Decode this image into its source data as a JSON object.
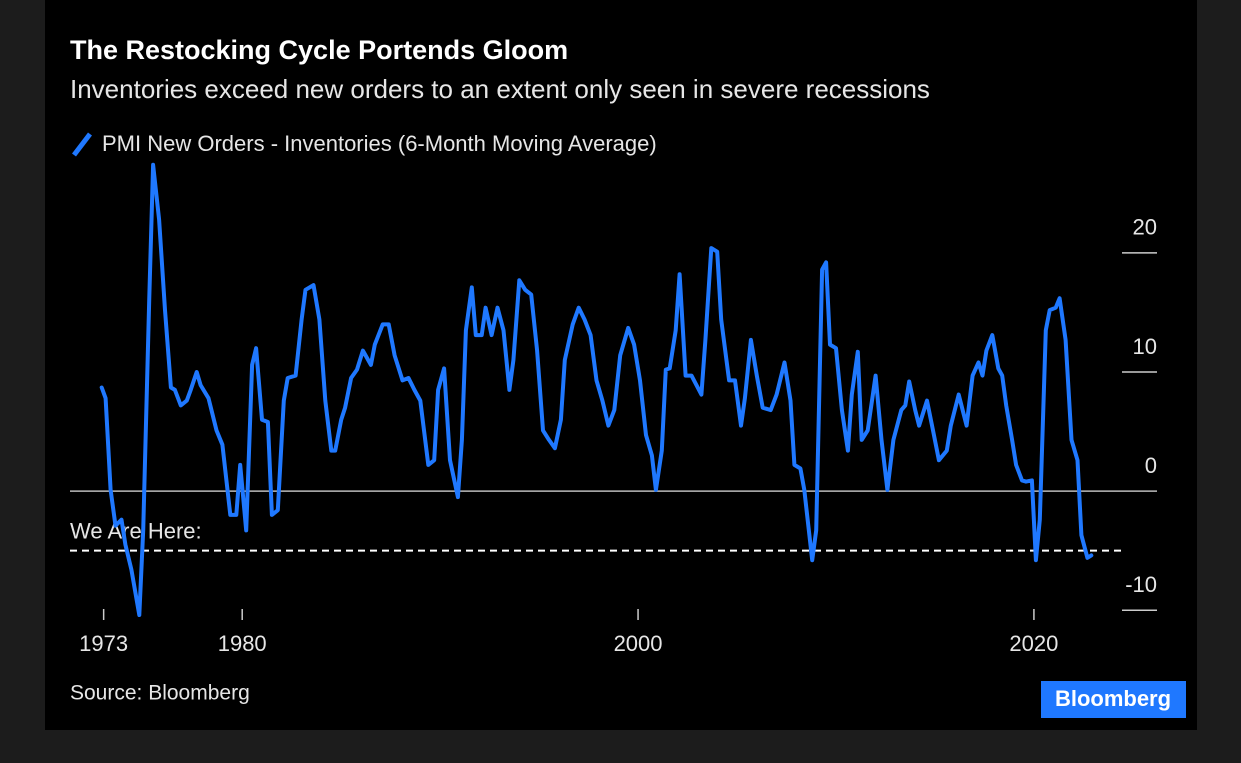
{
  "chart_data": {
    "type": "line",
    "title": "The Restocking Cycle Portends Gloom",
    "subtitle": "Inventories exceed new orders to an extent only seen in severe recessions",
    "source": "Source: Bloomberg",
    "logo": "Bloomberg",
    "xlim": [
      1971.3,
      2024.4
    ],
    "ylim": [
      -10.4,
      27.8
    ],
    "xticks": [
      1973,
      1980,
      2000,
      2020
    ],
    "yticks": [
      -10,
      0,
      10,
      20
    ],
    "reference_line": {
      "value": -5,
      "label": "We Are Here:"
    },
    "series": [
      {
        "name": "PMI New Orders - Inventories (6-Month Moving Average)",
        "color": "#1f78ff",
        "x": [
          1972.9,
          1973.1,
          1973.35,
          1973.6,
          1973.9,
          1974.1,
          1974.4,
          1974.8,
          1975.0,
          1975.3,
          1975.5,
          1975.8,
          1976.1,
          1976.4,
          1976.6,
          1976.9,
          1977.2,
          1977.4,
          1977.7,
          1977.9,
          1978.3,
          1978.7,
          1979.0,
          1979.4,
          1979.7,
          1979.9,
          1980.2,
          1980.5,
          1980.7,
          1981.0,
          1981.3,
          1981.5,
          1981.8,
          1982.1,
          1982.3,
          1982.7,
          1983.0,
          1983.2,
          1983.6,
          1983.9,
          1984.2,
          1984.5,
          1984.7,
          1985.0,
          1985.2,
          1985.5,
          1985.8,
          1986.1,
          1986.5,
          1986.7,
          1987.1,
          1987.4,
          1987.7,
          1988.1,
          1988.4,
          1988.7,
          1989.0,
          1989.4,
          1989.7,
          1989.9,
          1990.2,
          1990.5,
          1990.9,
          1991.1,
          1991.3,
          1991.6,
          1991.8,
          1992.1,
          1992.3,
          1992.6,
          1992.9,
          1993.2,
          1993.5,
          1993.7,
          1994.0,
          1994.3,
          1994.6,
          1994.9,
          1995.2,
          1995.5,
          1995.8,
          1996.1,
          1996.3,
          1996.7,
          1997.0,
          1997.3,
          1997.6,
          1997.9,
          1998.2,
          1998.5,
          1998.8,
          1999.1,
          1999.5,
          1999.8,
          2000.1,
          2000.4,
          2000.7,
          2000.9,
          2001.2,
          2001.4,
          2001.6,
          2001.9,
          2002.1,
          2002.4,
          2002.7,
          2003.2,
          2003.4,
          2003.7,
          2004.0,
          2004.2,
          2004.6,
          2004.9,
          2005.2,
          2005.4,
          2005.7,
          2006.0,
          2006.3,
          2006.7,
          2007.0,
          2007.4,
          2007.7,
          2007.9,
          2008.2,
          2008.4,
          2008.8,
          2009.0,
          2009.3,
          2009.5,
          2009.7,
          2010.0,
          2010.3,
          2010.6,
          2010.8,
          2011.1,
          2011.3,
          2011.6,
          2012.0,
          2012.3,
          2012.6,
          2012.9,
          2013.3,
          2013.5,
          2013.7,
          2014.0,
          2014.2,
          2014.6,
          2014.9,
          2015.2,
          2015.6,
          2015.8,
          2016.2,
          2016.6,
          2016.9,
          2017.2,
          2017.4,
          2017.6,
          2017.9,
          2018.2,
          2018.4,
          2018.6,
          2018.9,
          2019.1,
          2019.4,
          2019.6,
          2019.9,
          2020.1,
          2020.3,
          2020.6,
          2020.8,
          2021.1,
          2021.3,
          2021.6,
          2021.9,
          2022.2,
          2022.4,
          2022.7,
          2022.9
        ],
        "values": [
          8.7,
          7.8,
          0.1,
          -2.9,
          -2.4,
          -4.5,
          -6.6,
          -10.4,
          -3.3,
          16,
          27.4,
          22.8,
          15.2,
          8.7,
          8.5,
          7.2,
          7.6,
          8.5,
          10,
          8.9,
          7.8,
          5.1,
          3.9,
          -2,
          -2,
          2.2,
          -3.3,
          10.6,
          12,
          6,
          5.8,
          -2,
          -1.6,
          7.6,
          9.5,
          9.7,
          14.4,
          16.9,
          17.3,
          14.4,
          7.6,
          3.4,
          3.4,
          6,
          7,
          9.5,
          10.2,
          11.8,
          10.6,
          12.3,
          14,
          14,
          11.4,
          9.3,
          9.5,
          8.5,
          7.6,
          2.2,
          2.6,
          8.5,
          10.3,
          2.6,
          -0.5,
          4.3,
          13.5,
          17.1,
          13.1,
          13.1,
          15.4,
          13.1,
          15.4,
          13.5,
          8.5,
          11,
          17.7,
          16.9,
          16.5,
          11.8,
          5.1,
          4.3,
          3.6,
          6,
          11,
          14,
          15.4,
          14.4,
          13.1,
          9.3,
          7.6,
          5.5,
          6.8,
          11.4,
          13.7,
          12.3,
          9.3,
          4.7,
          3,
          0.1,
          3.4,
          10.2,
          10.3,
          13.5,
          18.2,
          9.7,
          9.7,
          8.1,
          12.7,
          20.4,
          20.1,
          14.4,
          9.3,
          9.3,
          5.5,
          7.8,
          12.7,
          9.7,
          7,
          6.8,
          8.1,
          10.8,
          7.6,
          2.2,
          1.9,
          0.1,
          -5.8,
          -3.3,
          18.6,
          19.2,
          12.3,
          12,
          6.8,
          3.4,
          8.1,
          11.7,
          4.3,
          5.1,
          9.7,
          4.3,
          0.1,
          4.3,
          6.8,
          7.2,
          9.2,
          6.8,
          5.5,
          7.6,
          5.1,
          2.6,
          3.4,
          5.5,
          8.1,
          5.5,
          9.7,
          10.8,
          9.7,
          11.8,
          13.1,
          10.3,
          9.7,
          7.2,
          4.3,
          2.2,
          0.9,
          0.8,
          0.9,
          -5.8,
          -2.4,
          13.5,
          15.2,
          15.4,
          16.2,
          12.7,
          4.3,
          2.6,
          -3.7,
          -5.6,
          -5.4
        ]
      }
    ]
  }
}
